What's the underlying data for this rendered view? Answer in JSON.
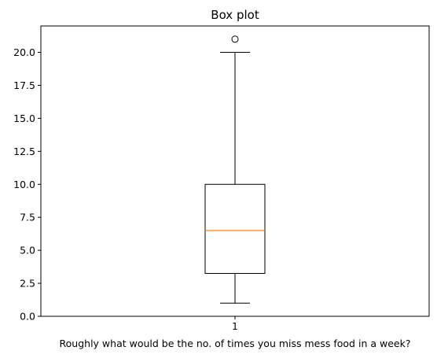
{
  "chart_data": {
    "type": "box",
    "title": "Box plot",
    "xlabel": "Roughly what would be the no. of times you miss mess food in a week?",
    "ylabel": "",
    "ylim": [
      0,
      22
    ],
    "yticks": [
      "0.0",
      "2.5",
      "5.0",
      "7.5",
      "10.0",
      "12.5",
      "15.0",
      "17.5",
      "20.0"
    ],
    "categories": [
      "1"
    ],
    "series": [
      {
        "whisker_low": 1,
        "q1": 3.25,
        "median": 6.5,
        "q3": 10,
        "whisker_high": 20,
        "outliers": [
          21
        ]
      }
    ],
    "grid": false,
    "colors": {
      "box": "#000000",
      "median": "#ff7f0e",
      "outlier": "#000000"
    }
  }
}
